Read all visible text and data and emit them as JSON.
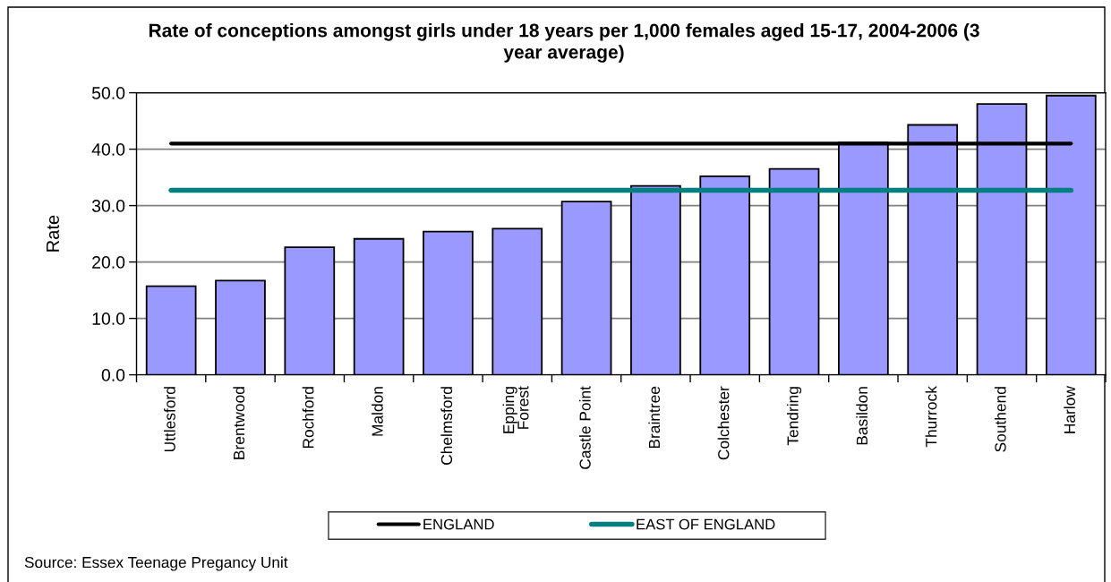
{
  "chart_data": {
    "type": "bar",
    "title": "Rate of conceptions amongst girls under 18 years per 1,000 females aged 15-17, 2004-2006 (3 year average)",
    "ylabel": "Rate",
    "categories": [
      "Uttlesford",
      "Brentwood",
      "Rochford",
      "Maldon",
      "Chelmsford",
      "Epping Forest",
      "Castle Point",
      "Braintree",
      "Colchester",
      "Tendring",
      "Basildon",
      "Thurrock",
      "Southend",
      "Harlow"
    ],
    "series": [
      {
        "color": "#9999ff",
        "values": [
          15.7,
          16.7,
          22.6,
          24.1,
          25.4,
          25.9,
          30.7,
          33.5,
          35.2,
          36.5,
          41.2,
          44.3,
          48.0,
          49.5
        ]
      },
      {
        "type": "line",
        "name": "ENGLAND",
        "color": "#000000",
        "values": [
          41.0,
          41.0,
          41.0,
          41.0,
          41.0,
          41.0,
          41.0,
          41.0,
          41.0,
          41.0,
          41.0,
          41.0,
          41.0,
          41.0
        ]
      },
      {
        "type": "line",
        "name": "EAST OF ENGLAND",
        "color": "#008080",
        "values": [
          32.7,
          32.7,
          32.7,
          32.7,
          32.7,
          32.7,
          32.7,
          32.7,
          32.7,
          32.7,
          32.7,
          32.7,
          32.7,
          32.7
        ]
      }
    ],
    "ylim": [
      0,
      50
    ],
    "yticks": [
      {
        "value": 0,
        "label": "0.0"
      },
      {
        "value": 10,
        "label": "10.0"
      },
      {
        "value": 20,
        "label": "20.0"
      },
      {
        "value": 30,
        "label": "30.0"
      },
      {
        "value": 40,
        "label": "40.0"
      },
      {
        "value": 50,
        "label": "50.0"
      }
    ],
    "grid": "y",
    "legend": "bottom",
    "annotations": [
      "Source: Essex Teenage Pregancy Unit"
    ]
  }
}
